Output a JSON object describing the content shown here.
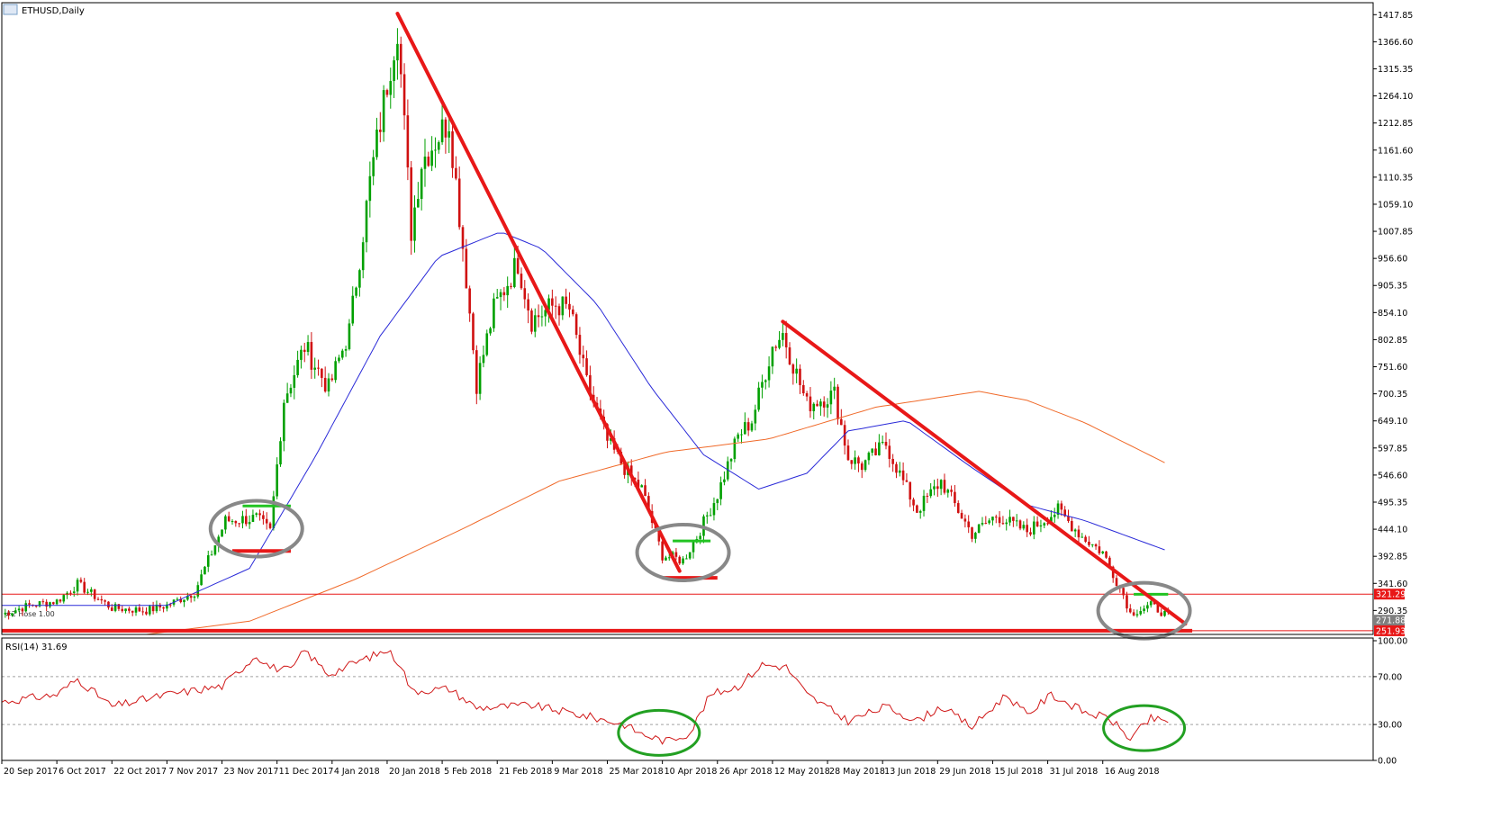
{
  "window": {
    "title": "ETHUSD,Daily",
    "rsi_label": "RSI(14) 31.69",
    "small_overlay_text": "#2 Hose 1.00"
  },
  "colors": {
    "background": "#ffffff",
    "axis": "#000000",
    "candle_up": "#00a000",
    "candle_down": "#d01010",
    "ma_fast": "#2a2ad8",
    "ma_slow": "#f06a2a",
    "trendline": "#e81818",
    "support_line": "#e81818",
    "level_box": "#e81818",
    "circle_gray": "#888888",
    "circle_green": "#22a022",
    "green_mark": "#22c322",
    "rsi_line": "#d01818",
    "rsi_level": "#a0a0a0"
  },
  "chart_data": [
    {
      "type": "candlestick",
      "symbol": "ETHUSD",
      "timeframe": "Daily",
      "title": "ETHUSD,Daily",
      "y_ticks": [
        1417.85,
        1366.6,
        1315.35,
        1264.1,
        1212.85,
        1161.6,
        1110.35,
        1059.1,
        1007.85,
        956.6,
        905.35,
        854.1,
        802.85,
        751.6,
        700.35,
        649.1,
        597.85,
        546.6,
        495.35,
        444.1,
        392.85,
        341.6,
        290.35
      ],
      "ylim": [
        245,
        1432
      ],
      "x_ticks": [
        "20 Sep 2017",
        "6 Oct 2017",
        "22 Oct 2017",
        "7 Nov 2017",
        "23 Nov 2017",
        "11 Dec 2017",
        "4 Jan 2018",
        "20 Jan 2018",
        "5 Feb 2018",
        "21 Feb 2018",
        "9 Mar 2018",
        "25 Mar 2018",
        "10 Apr 2018",
        "26 Apr 2018",
        "12 May 2018",
        "28 May 2018",
        "13 Jun 2018",
        "29 Jun 2018",
        "15 Jul 2018",
        "31 Jul 2018",
        "16 Aug 2018"
      ],
      "price_key_points": [
        {
          "date": "2017-09-20",
          "close": 283
        },
        {
          "date": "2017-09-28",
          "close": 300
        },
        {
          "date": "2017-10-06",
          "close": 308
        },
        {
          "date": "2017-10-12",
          "close": 340
        },
        {
          "date": "2017-10-22",
          "close": 295
        },
        {
          "date": "2017-11-01",
          "close": 290
        },
        {
          "date": "2017-11-07",
          "close": 300
        },
        {
          "date": "2017-11-15",
          "close": 325
        },
        {
          "date": "2017-11-24",
          "close": 460
        },
        {
          "date": "2017-12-03",
          "close": 465
        },
        {
          "date": "2017-12-07",
          "close": 440
        },
        {
          "date": "2017-12-11",
          "close": 690
        },
        {
          "date": "2017-12-17",
          "close": 790
        },
        {
          "date": "2017-12-24",
          "close": 710
        },
        {
          "date": "2017-12-30",
          "close": 820
        },
        {
          "date": "2018-01-05",
          "close": 1100
        },
        {
          "date": "2018-01-10",
          "close": 1290
        },
        {
          "date": "2018-01-13",
          "close": 1400
        },
        {
          "date": "2018-01-17",
          "close": 1010
        },
        {
          "date": "2018-01-20",
          "close": 1140
        },
        {
          "date": "2018-01-28",
          "close": 1220
        },
        {
          "date": "2018-02-02",
          "close": 920
        },
        {
          "date": "2018-02-05",
          "close": 720
        },
        {
          "date": "2018-02-10",
          "close": 860
        },
        {
          "date": "2018-02-17",
          "close": 950
        },
        {
          "date": "2018-02-21",
          "close": 840
        },
        {
          "date": "2018-02-28",
          "close": 870
        },
        {
          "date": "2018-03-04",
          "close": 860
        },
        {
          "date": "2018-03-09",
          "close": 720
        },
        {
          "date": "2018-03-15",
          "close": 610
        },
        {
          "date": "2018-03-22",
          "close": 540
        },
        {
          "date": "2018-03-25",
          "close": 520
        },
        {
          "date": "2018-03-31",
          "close": 395
        },
        {
          "date": "2018-04-06",
          "close": 385
        },
        {
          "date": "2018-04-10",
          "close": 430
        },
        {
          "date": "2018-04-16",
          "close": 510
        },
        {
          "date": "2018-04-22",
          "close": 620
        },
        {
          "date": "2018-04-26",
          "close": 650
        },
        {
          "date": "2018-05-02",
          "close": 790
        },
        {
          "date": "2018-05-05",
          "close": 815
        },
        {
          "date": "2018-05-12",
          "close": 680
        },
        {
          "date": "2018-05-20",
          "close": 700
        },
        {
          "date": "2018-05-24",
          "close": 580
        },
        {
          "date": "2018-05-28",
          "close": 565
        },
        {
          "date": "2018-06-04",
          "close": 605
        },
        {
          "date": "2018-06-10",
          "close": 520
        },
        {
          "date": "2018-06-13",
          "close": 480
        },
        {
          "date": "2018-06-20",
          "close": 535
        },
        {
          "date": "2018-06-29",
          "close": 435
        },
        {
          "date": "2018-07-06",
          "close": 470
        },
        {
          "date": "2018-07-15",
          "close": 440
        },
        {
          "date": "2018-07-24",
          "close": 480
        },
        {
          "date": "2018-07-31",
          "close": 430
        },
        {
          "date": "2018-08-06",
          "close": 400
        },
        {
          "date": "2018-08-12",
          "close": 320
        },
        {
          "date": "2018-08-14",
          "close": 285
        },
        {
          "date": "2018-08-20",
          "close": 300
        },
        {
          "date": "2018-08-25",
          "close": 280
        }
      ],
      "ma_fast_points": [
        {
          "date": "2017-09-20",
          "value": 300
        },
        {
          "date": "2017-11-07",
          "value": 300
        },
        {
          "date": "2017-12-01",
          "value": 370
        },
        {
          "date": "2017-12-20",
          "value": 580
        },
        {
          "date": "2018-01-08",
          "value": 810
        },
        {
          "date": "2018-01-25",
          "value": 960
        },
        {
          "date": "2018-02-12",
          "value": 1007
        },
        {
          "date": "2018-02-24",
          "value": 975
        },
        {
          "date": "2018-03-12",
          "value": 870
        },
        {
          "date": "2018-03-28",
          "value": 710
        },
        {
          "date": "2018-04-12",
          "value": 585
        },
        {
          "date": "2018-04-28",
          "value": 520
        },
        {
          "date": "2018-05-12",
          "value": 550
        },
        {
          "date": "2018-05-24",
          "value": 630
        },
        {
          "date": "2018-06-10",
          "value": 650
        },
        {
          "date": "2018-06-28",
          "value": 565
        },
        {
          "date": "2018-07-15",
          "value": 490
        },
        {
          "date": "2018-08-01",
          "value": 460
        },
        {
          "date": "2018-08-24",
          "value": 405
        }
      ],
      "ma_slow_points": [
        {
          "date": "2017-11-01",
          "value": 245
        },
        {
          "date": "2017-12-01",
          "value": 270
        },
        {
          "date": "2018-01-01",
          "value": 350
        },
        {
          "date": "2018-02-01",
          "value": 445
        },
        {
          "date": "2018-03-01",
          "value": 535
        },
        {
          "date": "2018-04-01",
          "value": 590
        },
        {
          "date": "2018-05-01",
          "value": 615
        },
        {
          "date": "2018-06-01",
          "value": 675
        },
        {
          "date": "2018-07-01",
          "value": 705
        },
        {
          "date": "2018-07-15",
          "value": 688
        },
        {
          "date": "2018-08-01",
          "value": 645
        },
        {
          "date": "2018-08-24",
          "value": 570
        }
      ],
      "price_levels": [
        {
          "label": "321.29",
          "value": 321.29,
          "style": "boxed"
        },
        {
          "label": "271.88",
          "value": 271.88,
          "style": "gray"
        },
        {
          "label": "251.93",
          "value": 251.93,
          "style": "boxed"
        }
      ],
      "trendlines": [
        {
          "from": {
            "date": "2018-01-13",
            "value": 1420
          },
          "to": {
            "date": "2018-04-05",
            "value": 365
          }
        },
        {
          "from": {
            "date": "2018-05-05",
            "value": 837
          },
          "to": {
            "date": "2018-08-30",
            "value": 265
          }
        }
      ],
      "support_segments": [
        {
          "from": "2017-11-26",
          "to": "2017-12-13",
          "value": 403
        },
        {
          "from": "2018-03-31",
          "to": "2018-04-16",
          "value": 352
        },
        {
          "from": "2017-09-20",
          "to": "2018-09-01",
          "value": 251.93
        }
      ],
      "resistance_marks": [
        {
          "from": "2017-11-29",
          "to": "2017-12-13",
          "value": 488
        },
        {
          "from": "2018-04-03",
          "to": "2018-04-14",
          "value": 422
        },
        {
          "from": "2018-08-15",
          "to": "2018-08-25",
          "value": 321
        }
      ],
      "highlight_circles": [
        {
          "center": {
            "date": "2017-12-03",
            "value": 445
          },
          "color": "gray"
        },
        {
          "center": {
            "date": "2018-04-06",
            "value": 400
          },
          "color": "gray"
        },
        {
          "center": {
            "date": "2018-08-18",
            "value": 290
          },
          "color": "gray"
        }
      ]
    },
    {
      "type": "line",
      "title": "RSI(14) 31.69",
      "indicator": "RSI",
      "period": 14,
      "current": 31.69,
      "y_ticks": [
        100.0,
        70.0,
        30.0,
        0.0
      ],
      "ylim": [
        0,
        100
      ],
      "levels": [
        70,
        30
      ],
      "rsi_points": [
        {
          "date": "2017-09-20",
          "value": 49
        },
        {
          "date": "2017-10-06",
          "value": 55
        },
        {
          "date": "2017-10-12",
          "value": 68
        },
        {
          "date": "2017-10-22",
          "value": 45
        },
        {
          "date": "2017-11-07",
          "value": 55
        },
        {
          "date": "2017-11-23",
          "value": 62
        },
        {
          "date": "2017-12-03",
          "value": 88
        },
        {
          "date": "2017-12-07",
          "value": 78
        },
        {
          "date": "2017-12-13",
          "value": 75
        },
        {
          "date": "2017-12-17",
          "value": 92
        },
        {
          "date": "2017-12-24",
          "value": 72
        },
        {
          "date": "2018-01-01",
          "value": 82
        },
        {
          "date": "2018-01-10",
          "value": 92
        },
        {
          "date": "2018-01-14",
          "value": 80
        },
        {
          "date": "2018-01-17",
          "value": 58
        },
        {
          "date": "2018-01-28",
          "value": 60
        },
        {
          "date": "2018-02-05",
          "value": 44
        },
        {
          "date": "2018-02-21",
          "value": 46
        },
        {
          "date": "2018-03-09",
          "value": 37
        },
        {
          "date": "2018-03-20",
          "value": 30
        },
        {
          "date": "2018-03-25",
          "value": 22
        },
        {
          "date": "2018-04-01",
          "value": 16
        },
        {
          "date": "2018-04-08",
          "value": 23
        },
        {
          "date": "2018-04-14",
          "value": 55
        },
        {
          "date": "2018-04-22",
          "value": 62
        },
        {
          "date": "2018-04-29",
          "value": 80
        },
        {
          "date": "2018-05-06",
          "value": 78
        },
        {
          "date": "2018-05-12",
          "value": 55
        },
        {
          "date": "2018-05-24",
          "value": 33
        },
        {
          "date": "2018-06-04",
          "value": 45
        },
        {
          "date": "2018-06-13",
          "value": 33
        },
        {
          "date": "2018-06-20",
          "value": 45
        },
        {
          "date": "2018-06-29",
          "value": 28
        },
        {
          "date": "2018-07-09",
          "value": 55
        },
        {
          "date": "2018-07-15",
          "value": 38
        },
        {
          "date": "2018-07-22",
          "value": 55
        },
        {
          "date": "2018-08-01",
          "value": 40
        },
        {
          "date": "2018-08-08",
          "value": 35
        },
        {
          "date": "2018-08-14",
          "value": 18
        },
        {
          "date": "2018-08-20",
          "value": 35
        },
        {
          "date": "2018-08-25",
          "value": 31.69
        }
      ],
      "highlight_circles": [
        {
          "center": {
            "date": "2018-03-30",
            "value": 23
          },
          "color": "green"
        },
        {
          "center": {
            "date": "2018-08-18",
            "value": 27
          },
          "color": "green"
        }
      ]
    }
  ]
}
